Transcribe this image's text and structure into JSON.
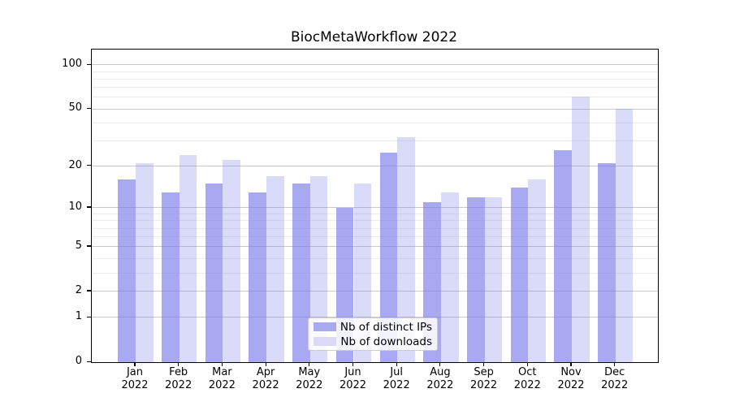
{
  "chart_data": {
    "type": "bar",
    "title": "BiocMetaWorkflow 2022",
    "categories": [
      "Jan",
      "Feb",
      "Mar",
      "Apr",
      "May",
      "Jun",
      "Jul",
      "Aug",
      "Sep",
      "Oct",
      "Nov",
      "Dec"
    ],
    "year_label": "2022",
    "series": [
      {
        "name": "Nb of distinct IPs",
        "values": [
          16,
          13,
          15,
          13,
          15,
          10,
          25,
          11,
          12,
          14,
          26,
          21
        ],
        "fill": "rgba(123,123,235,0.65)",
        "swatch": "#a9a9ef"
      },
      {
        "name": "Nb of downloads",
        "values": [
          21,
          24,
          22,
          17,
          17,
          15,
          32,
          13,
          12,
          16,
          61,
          50
        ],
        "fill": "rgba(123,123,235,0.28)",
        "swatch": "#dadaf7"
      }
    ],
    "yscale": "log1p",
    "ylim": [
      0,
      101
    ],
    "yticks": [
      0,
      1,
      2,
      5,
      10,
      20,
      50,
      100
    ],
    "grid": {
      "minor_values": [
        3,
        4,
        6,
        7,
        8,
        9,
        30,
        40,
        60,
        70,
        80,
        90
      ],
      "major_color": "#c9c9c9",
      "minor_color": "#ececec"
    },
    "legend_position": "lower center",
    "axis_color": "#000000"
  }
}
